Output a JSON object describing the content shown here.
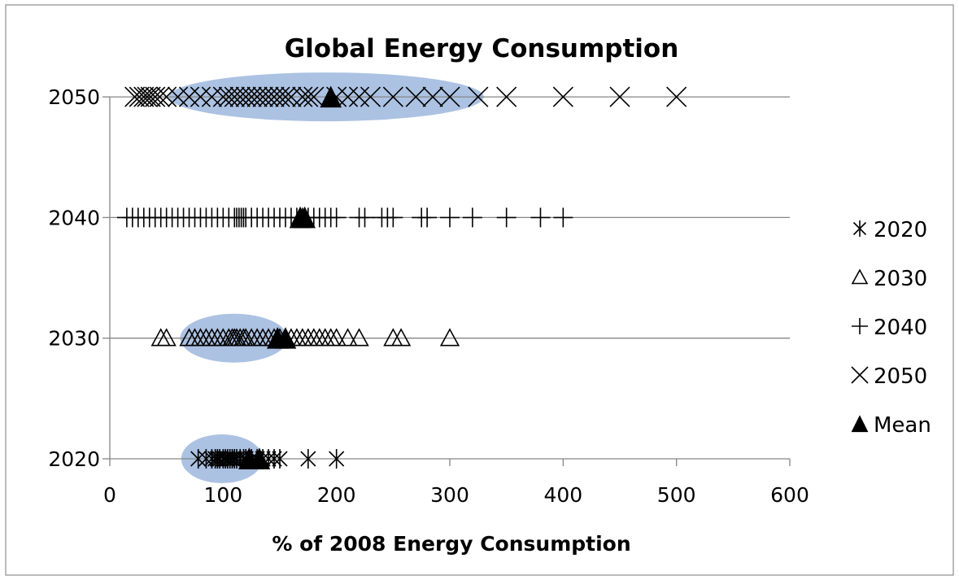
{
  "chart_data": {
    "type": "scatter",
    "title": "Global Energy Consumption",
    "xlabel": "% of 2008 Energy Consumption",
    "ylabel": "",
    "xlim": [
      0,
      600
    ],
    "x_ticks": [
      0,
      100,
      200,
      300,
      400,
      500,
      600
    ],
    "y_categories": [
      "2020",
      "2030",
      "2040",
      "2050"
    ],
    "grid": "horizontal gridlines at each category",
    "legend_position": "right",
    "series": [
      {
        "name": "2020",
        "marker": "asterisk",
        "y": "2020",
        "x": [
          78,
          85,
          90,
          93,
          95,
          97,
          100,
          102,
          104,
          106,
          108,
          110,
          112,
          115,
          118,
          120,
          125,
          130,
          135,
          140,
          145,
          150,
          175,
          200
        ]
      },
      {
        "name": "2030",
        "marker": "open-triangle",
        "y": "2030",
        "x": [
          45,
          50,
          70,
          75,
          80,
          85,
          90,
          95,
          100,
          105,
          108,
          110,
          112,
          115,
          118,
          120,
          125,
          130,
          135,
          140,
          145,
          150,
          155,
          160,
          165,
          170,
          175,
          180,
          185,
          190,
          195,
          200,
          210,
          220,
          250,
          257,
          300
        ]
      },
      {
        "name": "2040",
        "marker": "plus",
        "y": "2040",
        "x": [
          15,
          20,
          25,
          30,
          35,
          40,
          45,
          50,
          55,
          60,
          65,
          70,
          75,
          80,
          85,
          90,
          95,
          100,
          105,
          110,
          112,
          114,
          116,
          118,
          120,
          125,
          130,
          135,
          140,
          145,
          150,
          155,
          160,
          165,
          170,
          175,
          180,
          185,
          190,
          195,
          200,
          220,
          225,
          240,
          245,
          250,
          275,
          280,
          300,
          320,
          350,
          380,
          400
        ]
      },
      {
        "name": "2050",
        "marker": "x",
        "y": "2050",
        "x": [
          22,
          26,
          30,
          33,
          36,
          40,
          44,
          50,
          60,
          70,
          80,
          90,
          100,
          105,
          110,
          115,
          120,
          125,
          130,
          135,
          140,
          145,
          150,
          155,
          160,
          170,
          175,
          180,
          200,
          210,
          220,
          230,
          250,
          270,
          285,
          300,
          325,
          350,
          400,
          450,
          500
        ]
      },
      {
        "name": "Mean",
        "marker": "filled-triangle",
        "points": [
          {
            "y": "2020",
            "x": 123
          },
          {
            "y": "2020",
            "x": 132
          },
          {
            "y": "2030",
            "x": 148
          },
          {
            "y": "2030",
            "x": 155
          },
          {
            "y": "2040",
            "x": 168
          },
          {
            "y": "2040",
            "x": 172
          },
          {
            "y": "2050",
            "x": 195
          }
        ]
      }
    ],
    "ellipses": [
      {
        "y": "2020",
        "x_from": 63,
        "x_to": 135
      },
      {
        "y": "2030",
        "x_from": 62,
        "x_to": 157
      },
      {
        "y": "2050",
        "x_from": 52,
        "x_to": 330
      }
    ],
    "colors": {
      "ellipse_fill": "#9db7de",
      "axis": "#868686",
      "grid": "#868686",
      "marker": "#000000"
    }
  }
}
